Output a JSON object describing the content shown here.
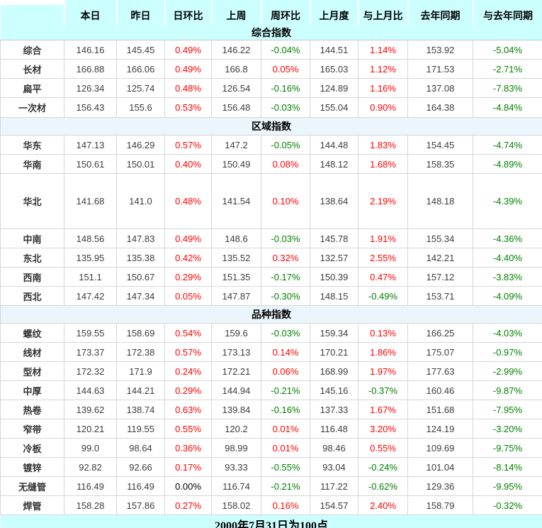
{
  "colors": {
    "header_bg": "#ccffff",
    "section_bg": "#eaf5fc",
    "positive": "#ff0000",
    "negative": "#008000",
    "neutral": "#000000",
    "value_text": "#3c3c3c"
  },
  "table": {
    "headers": [
      "本日",
      "昨日",
      "日环比",
      "上周",
      "周环比",
      "上月度",
      "与上月比",
      "去年同期",
      "与去年同期"
    ],
    "footer": "2000年7月31日为100点",
    "sections": [
      {
        "title": "综合指数",
        "rows": [
          {
            "label": "综合",
            "values": [
              "146.16",
              "145.45",
              "0.49%",
              "146.22",
              "-0.04%",
              "144.51",
              "1.14%",
              "153.92",
              "-5.04%"
            ]
          },
          {
            "label": "长材",
            "values": [
              "166.88",
              "166.06",
              "0.49%",
              "166.8",
              "0.05%",
              "165.03",
              "1.12%",
              "171.53",
              "-2.71%"
            ]
          },
          {
            "label": "扁平",
            "values": [
              "126.34",
              "125.74",
              "0.48%",
              "126.54",
              "-0.16%",
              "124.89",
              "1.16%",
              "137.08",
              "-7.83%"
            ]
          },
          {
            "label": "一次材",
            "tall2": true,
            "values": [
              "156.43",
              "155.6",
              "0.53%",
              "156.48",
              "-0.03%",
              "155.04",
              "0.90%",
              "164.38",
              "-4.84%"
            ]
          }
        ]
      },
      {
        "title": "区域指数",
        "rows": [
          {
            "label": "华东",
            "values": [
              "147.13",
              "146.29",
              "0.57%",
              "147.2",
              "-0.05%",
              "144.48",
              "1.83%",
              "154.45",
              "-4.74%"
            ]
          },
          {
            "label": "华南",
            "values": [
              "150.61",
              "150.01",
              "0.40%",
              "150.49",
              "0.08%",
              "148.12",
              "1.68%",
              "158.35",
              "-4.89%"
            ]
          },
          {
            "label": "华北",
            "tall": true,
            "values": [
              "141.68",
              "141.0",
              "0.48%",
              "141.54",
              "0.10%",
              "138.64",
              "2.19%",
              "148.18",
              "-4.39%"
            ]
          },
          {
            "label": "中南",
            "values": [
              "148.56",
              "147.83",
              "0.49%",
              "148.6",
              "-0.03%",
              "145.78",
              "1.91%",
              "155.34",
              "-4.36%"
            ]
          },
          {
            "label": "东北",
            "values": [
              "135.95",
              "135.38",
              "0.42%",
              "135.52",
              "0.32%",
              "132.57",
              "2.55%",
              "142.21",
              "-4.40%"
            ]
          },
          {
            "label": "西南",
            "values": [
              "151.1",
              "150.67",
              "0.29%",
              "151.35",
              "-0.17%",
              "150.39",
              "0.47%",
              "157.12",
              "-3.83%"
            ]
          },
          {
            "label": "西北",
            "values": [
              "147.42",
              "147.34",
              "0.05%",
              "147.87",
              "-0.30%",
              "148.15",
              "-0.49%",
              "153.71",
              "-4.09%"
            ]
          }
        ]
      },
      {
        "title": "品种指数",
        "rows": [
          {
            "label": "螺纹",
            "values": [
              "159.55",
              "158.69",
              "0.54%",
              "159.6",
              "-0.03%",
              "159.34",
              "0.13%",
              "166.25",
              "-4.03%"
            ]
          },
          {
            "label": "线材",
            "values": [
              "173.37",
              "172.38",
              "0.57%",
              "173.13",
              "0.14%",
              "170.21",
              "1.86%",
              "175.07",
              "-0.97%"
            ]
          },
          {
            "label": "型材",
            "values": [
              "172.32",
              "171.9",
              "0.24%",
              "172.21",
              "0.06%",
              "168.99",
              "1.97%",
              "177.63",
              "-2.99%"
            ]
          },
          {
            "label": "中厚",
            "values": [
              "144.63",
              "144.21",
              "0.29%",
              "144.94",
              "-0.21%",
              "145.16",
              "-0.37%",
              "160.46",
              "-9.87%"
            ]
          },
          {
            "label": "热卷",
            "values": [
              "139.62",
              "138.74",
              "0.63%",
              "139.84",
              "-0.16%",
              "137.33",
              "1.67%",
              "151.68",
              "-7.95%"
            ]
          },
          {
            "label": "窄带",
            "values": [
              "120.21",
              "119.55",
              "0.55%",
              "120.2",
              "0.01%",
              "116.48",
              "3.20%",
              "124.19",
              "-3.20%"
            ]
          },
          {
            "label": "冷板",
            "values": [
              "99.0",
              "98.64",
              "0.36%",
              "98.99",
              "0.01%",
              "98.46",
              "0.55%",
              "109.69",
              "-9.75%"
            ]
          },
          {
            "label": "镀锌",
            "values": [
              "92.82",
              "92.66",
              "0.17%",
              "93.33",
              "-0.55%",
              "93.04",
              "-0.24%",
              "101.04",
              "-8.14%"
            ]
          },
          {
            "label": "无缝管",
            "values": [
              "116.49",
              "116.49",
              "0.00%",
              "116.74",
              "-0.21%",
              "117.22",
              "-0.62%",
              "129.36",
              "-9.95%"
            ]
          },
          {
            "label": "焊管",
            "values": [
              "158.28",
              "157.86",
              "0.27%",
              "158.02",
              "0.16%",
              "154.57",
              "2.40%",
              "158.79",
              "-0.32%"
            ]
          }
        ]
      }
    ]
  }
}
